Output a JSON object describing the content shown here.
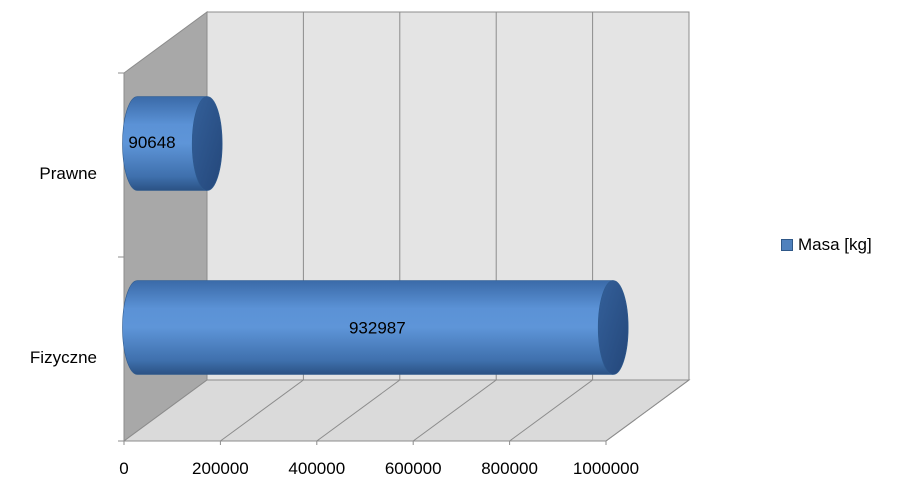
{
  "chart_data": {
    "type": "bar",
    "orientation": "horizontal",
    "style": "3d-cylinder",
    "categories": [
      "Fizyczne",
      "Prawne"
    ],
    "series": [
      {
        "name": "Masa [kg]",
        "values": [
          932987,
          90648
        ],
        "color": "#4f81bd"
      }
    ],
    "data_labels": [
      "932987",
      "90648"
    ],
    "x_ticks": [
      "0",
      "200000",
      "400000",
      "600000",
      "800000",
      "1000000"
    ],
    "xlim": [
      0,
      1000000
    ],
    "grid": true,
    "legend_position": "right",
    "title": "",
    "xlabel": "",
    "ylabel": ""
  }
}
